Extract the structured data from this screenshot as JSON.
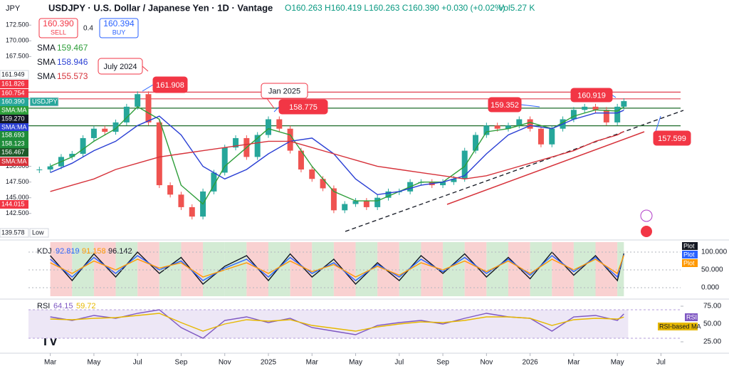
{
  "header": {
    "symbol_tab": "JPY",
    "title": "USDJPY · U.S. Dollar / Japanese Yen · 1D · Vantage",
    "ohlc": "O160.263 H160.419 L160.263 C160.390 +0.030 (+0.02%)",
    "volume": "Vol5.27 K"
  },
  "trade": {
    "sell_price": "160.390",
    "sell": "SELL",
    "spread": "0.4",
    "buy_price": "160.394",
    "buy": "BUY"
  },
  "chart_data": [
    {
      "type": "candlestick",
      "xlim": [
        0,
        29.9
      ],
      "ylim": [
        138.5,
        176.5
      ],
      "xticks": [
        {
          "value": 1,
          "label": "Mar"
        },
        {
          "value": 3,
          "label": "May"
        },
        {
          "value": 5,
          "label": "Jul"
        },
        {
          "value": 7,
          "label": "Sep"
        },
        {
          "value": 9,
          "label": "Nov"
        },
        {
          "value": 11,
          "label": "2025"
        },
        {
          "value": 13,
          "label": "Mar"
        },
        {
          "value": 15,
          "label": "May"
        },
        {
          "value": 17,
          "label": "Jul"
        },
        {
          "value": 19,
          "label": "Sep"
        },
        {
          "value": 21,
          "label": "Nov"
        },
        {
          "value": 23,
          "label": "2026"
        },
        {
          "value": 25,
          "label": "Mar"
        },
        {
          "value": 27,
          "label": "May"
        },
        {
          "value": 29,
          "label": "Jul"
        }
      ],
      "yticks": [
        {
          "value": 172.5,
          "label": "172.500"
        },
        {
          "value": 170,
          "label": "170.000"
        },
        {
          "value": 167.5,
          "label": "167.500"
        },
        {
          "value": 150,
          "label": "150.000"
        },
        {
          "value": 147.5,
          "label": "147.500"
        },
        {
          "value": 145,
          "label": "145.000"
        },
        {
          "value": 142.5,
          "label": "142.500"
        }
      ],
      "x": [
        0.5,
        1,
        1.5,
        2,
        2.5,
        3,
        3.5,
        4,
        4.5,
        5,
        5.5,
        6,
        6.5,
        7,
        7.5,
        8,
        8.5,
        9,
        9.5,
        10,
        10.5,
        11,
        11.5,
        12,
        12.5,
        13,
        13.5,
        14,
        14.5,
        15,
        15.5,
        16,
        16.5,
        17,
        17.5,
        18,
        18.5,
        19,
        19.5,
        20,
        20.5,
        21,
        21.5,
        22,
        22.5,
        23,
        23.5,
        24,
        24.5,
        25,
        25.5,
        26,
        26.5,
        27,
        27.3
      ],
      "values": [
        149.5,
        150,
        151.5,
        152,
        154.5,
        156,
        155.5,
        157,
        159.5,
        161.5,
        157,
        147,
        145.5,
        143.5,
        142,
        146,
        149,
        153,
        154.5,
        151.5,
        155,
        157.5,
        156,
        152.5,
        149.5,
        148,
        146.5,
        143,
        144,
        144.5,
        143.5,
        145,
        146,
        146,
        147.5,
        147.5,
        147,
        147.5,
        148,
        152.5,
        155,
        156.5,
        156,
        156.5,
        157.5,
        156,
        153.5,
        156,
        157.5,
        159,
        159.5,
        159,
        157,
        159.5,
        160.39
      ],
      "series": [
        {
          "name": "SMA",
          "color": "#2e9e3a",
          "x": [
            1,
            2,
            3,
            4,
            5,
            6,
            7,
            8,
            9,
            10,
            11,
            12,
            13,
            14,
            15,
            16,
            17,
            18,
            19,
            20,
            21,
            22,
            23,
            24,
            25,
            26,
            27,
            27.3
          ],
          "values": [
            150,
            151.5,
            154,
            156,
            159.5,
            157.5,
            147,
            144,
            150,
            153,
            156,
            155,
            150,
            146,
            144.5,
            144.5,
            146,
            147.5,
            147.5,
            150,
            155.5,
            156,
            157,
            156,
            158,
            159,
            158.8,
            159.467
          ]
        },
        {
          "name": "SMA",
          "color": "#2a3fd4",
          "x": [
            1,
            2,
            3,
            4,
            5,
            6,
            7,
            8,
            9,
            10,
            11,
            12,
            13,
            14,
            15,
            16,
            17,
            18,
            19,
            20,
            21,
            22,
            23,
            24,
            25,
            26,
            27,
            27.3
          ],
          "values": [
            149,
            150.5,
            152.5,
            154,
            156.5,
            158,
            155,
            150,
            148,
            149.5,
            152,
            154,
            154.5,
            152,
            148,
            145.5,
            146,
            147,
            147.5,
            148.5,
            152,
            155,
            156.5,
            156,
            157.5,
            158.5,
            158.5,
            158.946
          ]
        },
        {
          "name": "SMA",
          "color": "#d6323a",
          "x": [
            1,
            2,
            3,
            4,
            5,
            6,
            7,
            8,
            9,
            10,
            11,
            12,
            13,
            14,
            15,
            16,
            17,
            18,
            19,
            20,
            21,
            22,
            23,
            24,
            25,
            26,
            27,
            27.3
          ],
          "values": [
            146,
            147,
            148,
            149.5,
            150.5,
            151.5,
            152,
            152.5,
            153,
            153.5,
            154,
            154,
            153,
            152,
            151,
            150,
            149.5,
            149,
            148.5,
            148,
            148.5,
            149.5,
            150.5,
            151.5,
            152.5,
            154,
            155,
            155.573
          ]
        }
      ],
      "levels": [
        {
          "value": 161.826,
          "color": "#e04050"
        },
        {
          "value": 160.754,
          "color": "#e04050"
        },
        {
          "value": 159.27,
          "color": "#1e6b2a"
        },
        {
          "value": 156.467,
          "color": "#1e6b2a"
        }
      ],
      "price_tags": [
        {
          "value": 161.949,
          "bg": "#ffffff",
          "fg": "#131722"
        },
        {
          "value": 161.826,
          "bg": "#f23645",
          "fg": "#ffffff"
        },
        {
          "value": 160.754,
          "bg": "#f23645",
          "fg": "#ffffff"
        },
        {
          "value": 160.39,
          "label": "160.390",
          "name": "USDJPY",
          "bg": "#26a69a",
          "fg": "#ffffff"
        },
        {
          "text": "SMA:MA",
          "bg": "#2e9e3a",
          "fg": "#ffffff"
        },
        {
          "value": 159.27,
          "label": "159.270",
          "bg": "#131722",
          "fg": "#ffffff"
        },
        {
          "text": "SMA:MA",
          "bg": "#2a3fd4",
          "fg": "#ffffff"
        },
        {
          "value": 158.693,
          "bg": "#1e8c3a",
          "fg": "#ffffff"
        },
        {
          "value": 158.123,
          "bg": "#1e8c3a",
          "fg": "#ffffff"
        },
        {
          "value": 156.467,
          "bg": "#1e5a2a",
          "fg": "#ffffff"
        },
        {
          "text": "SMA:MA",
          "bg": "#d6323a",
          "fg": "#ffffff"
        },
        {
          "value": 144.015,
          "bg": "#f23645",
          "fg": "#ffffff"
        },
        {
          "value": 139.578,
          "name": "Low",
          "bg": "#ffffff",
          "fg": "#131722"
        }
      ],
      "annotations": [
        {
          "text": "July 2024"
        },
        {
          "value": 161.908
        },
        {
          "text": "Jan 2025"
        },
        {
          "value": 158.775
        },
        {
          "value": 159.352
        },
        {
          "value": 160.919
        },
        {
          "value": 157.599
        }
      ]
    },
    {
      "type": "line",
      "title": "KDJ",
      "ylim": [
        -28,
        132
      ],
      "yticks": [
        {
          "value": 100,
          "label": "100.000"
        },
        {
          "value": 50,
          "label": "50.000"
        },
        {
          "value": 0,
          "label": "0.000"
        }
      ],
      "x": [
        1,
        2,
        3,
        4,
        5,
        6,
        7,
        8,
        9,
        10,
        11,
        12,
        13,
        14,
        15,
        16,
        17,
        18,
        19,
        20,
        21,
        22,
        23,
        24,
        25,
        26,
        27,
        27.3
      ],
      "series": [
        {
          "name": "Plot",
          "color": "#131722",
          "values": [
            90,
            20,
            95,
            30,
            100,
            40,
            85,
            10,
            60,
            90,
            20,
            95,
            30,
            80,
            10,
            70,
            20,
            90,
            40,
            95,
            30,
            85,
            25,
            100,
            35,
            90,
            20,
            96.142
          ]
        },
        {
          "name": "Plot",
          "color": "#2962ff",
          "values": [
            80,
            30,
            85,
            40,
            90,
            50,
            75,
            20,
            55,
            80,
            30,
            85,
            40,
            70,
            20,
            65,
            30,
            80,
            45,
            85,
            40,
            80,
            35,
            90,
            45,
            85,
            30,
            92.819
          ]
        },
        {
          "name": "Plot",
          "color": "#ff9800",
          "values": [
            70,
            40,
            75,
            50,
            80,
            55,
            70,
            30,
            50,
            70,
            40,
            75,
            45,
            65,
            30,
            60,
            35,
            70,
            50,
            75,
            45,
            75,
            40,
            80,
            50,
            80,
            40,
            91.158
          ]
        }
      ]
    },
    {
      "type": "line",
      "title": "RSI",
      "ylim": [
        11,
        83
      ],
      "band": [
        30,
        70
      ],
      "yticks": [
        {
          "value": 75,
          "label": "75.00"
        },
        {
          "value": 50,
          "label": "50.00"
        },
        {
          "value": 25,
          "label": "25.00"
        }
      ],
      "x": [
        1,
        2,
        3,
        4,
        5,
        6,
        7,
        8,
        9,
        10,
        11,
        12,
        13,
        14,
        15,
        16,
        17,
        18,
        19,
        20,
        21,
        22,
        23,
        24,
        25,
        26,
        27,
        27.3
      ],
      "series": [
        {
          "name": "RSI",
          "color": "#7e57c2",
          "values": [
            60,
            55,
            62,
            58,
            65,
            70,
            45,
            30,
            55,
            60,
            52,
            58,
            45,
            40,
            35,
            48,
            52,
            55,
            50,
            58,
            65,
            60,
            58,
            40,
            60,
            62,
            55,
            64.15
          ]
        },
        {
          "name": "RSI-based MA",
          "color": "#e6b800",
          "values": [
            57,
            56,
            58,
            59,
            62,
            65,
            52,
            40,
            50,
            56,
            54,
            56,
            48,
            44,
            40,
            46,
            50,
            53,
            52,
            55,
            60,
            60,
            58,
            48,
            56,
            58,
            57,
            59.72
          ]
        }
      ]
    }
  ]
}
